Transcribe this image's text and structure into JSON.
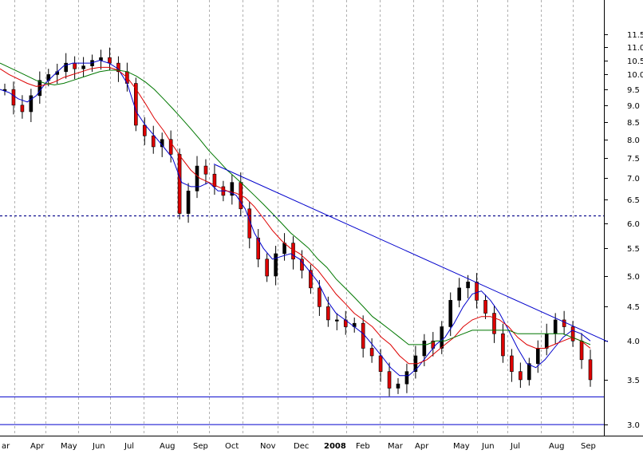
{
  "chart_data": {
    "type": "candlestick",
    "title": "",
    "xlabel": "",
    "ylabel": "",
    "y_scale": "log",
    "ylim": [
      2.96,
      12.3
    ],
    "y_ticks": [
      3.0,
      3.5,
      4.0,
      4.5,
      5.0,
      5.5,
      6.0,
      6.5,
      7.0,
      7.5,
      8.0,
      8.5,
      9.0,
      9.5,
      10.0,
      10.5,
      11.0,
      11.5
    ],
    "y_tick_labels": [
      "3.0",
      "3.5",
      "4.0",
      "4.5",
      "5.0",
      "5.5",
      "6.0",
      "6.5",
      "7.0",
      "7.5",
      "8.0",
      "8.5",
      "9.0",
      "9.5",
      "10.0",
      "10.5",
      "11.0",
      "11.5"
    ],
    "x_tick_labels": [
      "ar",
      "Apr",
      "May",
      "Jun",
      "Jul",
      "Aug",
      "Sep",
      "Oct",
      "Nov",
      "Dec",
      "2008",
      "Feb",
      "Mar",
      "Apr",
      "May",
      "Jun",
      "Jul",
      "Aug",
      "Sep"
    ],
    "x_label_bold": [
      "2008"
    ],
    "grid": "vertical dashed",
    "period_closes": [
      9.5,
      9.0,
      8.8,
      9.3,
      9.8,
      10.0,
      10.1,
      10.4,
      10.2,
      10.3,
      10.5,
      10.6,
      10.4,
      10.1,
      9.7,
      8.4,
      8.1,
      7.8,
      8.0,
      7.6,
      6.2,
      6.7,
      7.3,
      7.1,
      6.8,
      6.6,
      6.9,
      6.3,
      5.7,
      5.3,
      5.0,
      5.4,
      5.6,
      5.3,
      5.1,
      4.8,
      4.5,
      4.3,
      4.3,
      4.2,
      4.25,
      3.9,
      3.8,
      3.6,
      3.4,
      3.45,
      3.6,
      3.8,
      4.0,
      3.9,
      4.2,
      4.6,
      4.8,
      4.9,
      4.6,
      4.4,
      4.1,
      3.8,
      3.6,
      3.5,
      3.7,
      3.9,
      4.1,
      4.3,
      4.2,
      4.0,
      3.75,
      3.5
    ],
    "series": [
      {
        "name": "",
        "values": [
          9.5,
          9.4,
          9.2,
          9.1,
          9.3,
          9.7,
          10.0,
          10.3,
          10.4,
          10.4,
          10.4,
          10.5,
          10.4,
          10.2,
          9.7,
          8.8,
          8.4,
          8.1,
          7.8,
          7.5,
          6.9,
          6.8,
          6.8,
          6.9,
          6.7,
          6.7,
          6.6,
          6.3,
          5.8,
          5.5,
          5.3,
          5.35,
          5.4,
          5.3,
          5.1,
          4.9,
          4.6,
          4.4,
          4.3,
          4.2,
          4.1,
          3.95,
          3.8,
          3.65,
          3.55,
          3.55,
          3.65,
          3.8,
          3.95,
          4.05,
          4.25,
          4.5,
          4.7,
          4.75,
          4.6,
          4.4,
          4.15,
          3.9,
          3.7,
          3.65,
          3.75,
          3.9,
          4.05,
          4.15,
          4.1,
          4.0
        ]
      },
      {
        "name": "",
        "values": [
          10.2,
          10.0,
          9.85,
          9.7,
          9.6,
          9.65,
          9.75,
          9.9,
          10.0,
          10.1,
          10.2,
          10.25,
          10.25,
          10.15,
          9.9,
          9.5,
          9.05,
          8.6,
          8.25,
          7.85,
          7.5,
          7.2,
          7.0,
          6.9,
          6.8,
          6.7,
          6.65,
          6.55,
          6.35,
          6.1,
          5.85,
          5.65,
          5.5,
          5.4,
          5.25,
          5.1,
          4.9,
          4.7,
          4.55,
          4.4,
          4.3,
          4.2,
          4.05,
          3.95,
          3.8,
          3.7,
          3.7,
          3.75,
          3.85,
          3.95,
          4.05,
          4.2,
          4.3,
          4.35,
          4.35,
          4.3,
          4.2,
          4.05,
          3.95,
          3.9,
          3.9,
          3.95,
          4.0,
          4.05,
          4.0,
          3.9
        ]
      },
      {
        "name": "",
        "values": [
          10.4,
          10.25,
          10.1,
          9.95,
          9.8,
          9.7,
          9.65,
          9.7,
          9.8,
          9.9,
          10.0,
          10.1,
          10.15,
          10.15,
          10.1,
          9.95,
          9.75,
          9.5,
          9.2,
          8.9,
          8.6,
          8.3,
          8.0,
          7.7,
          7.45,
          7.2,
          7.0,
          6.8,
          6.6,
          6.4,
          6.2,
          6.0,
          5.8,
          5.65,
          5.5,
          5.3,
          5.15,
          4.95,
          4.8,
          4.65,
          4.5,
          4.35,
          4.25,
          4.15,
          4.05,
          3.95,
          3.95,
          3.95,
          4.0,
          4.0,
          4.05,
          4.1,
          4.15,
          4.15,
          4.15,
          4.15,
          4.15,
          4.1,
          4.1,
          4.1,
          4.1,
          4.1,
          4.1,
          4.05,
          4.0,
          3.95
        ]
      }
    ],
    "annotations": [
      {
        "type": "trendline",
        "from": {
          "month": "Oct",
          "value": 7.35
        },
        "to": {
          "month": "Sep",
          "value": 4.0
        }
      },
      {
        "type": "horizontal_dashed",
        "value": 6.15
      },
      {
        "type": "horizontal",
        "value": 3.3
      },
      {
        "type": "horizontal",
        "value": 3.0
      }
    ]
  }
}
